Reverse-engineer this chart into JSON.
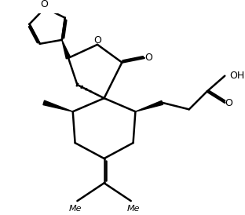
{
  "background_color": "#ffffff",
  "line_color": "#000000",
  "line_width": 1.8,
  "fig_width": 3.12,
  "fig_height": 2.74,
  "dpi": 100,
  "xlim": [
    0,
    10
  ],
  "ylim": [
    0,
    9
  ]
}
